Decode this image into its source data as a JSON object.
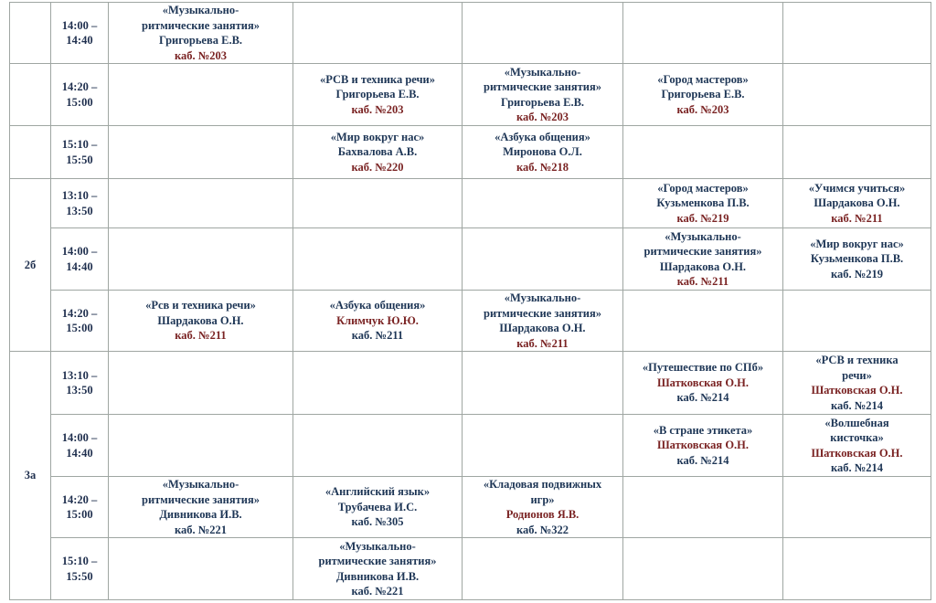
{
  "groups": {
    "g2b": "2б",
    "g3a": "3а"
  },
  "rows": {
    "r1": {
      "t1": "14:00 –",
      "t2": "14:40",
      "c1": {
        "l1": "«Музыкально-",
        "l2": "ритмические занятия»",
        "l3": "Григорьева Е.В.",
        "l4": "каб. №203"
      }
    },
    "r2": {
      "t1": "14:20 –",
      "t2": "15:00",
      "c2": {
        "l1": "«РСВ и техника речи»",
        "l2": "Григорьева Е.В.",
        "l3": "каб. №203"
      },
      "c3": {
        "l1": "«Музыкально-",
        "l2": "ритмические занятия»",
        "l3": "Григорьева Е.В.",
        "l4": "каб. №203"
      },
      "c4": {
        "l1": "«Город мастеров»",
        "l2": "Григорьева Е.В.",
        "l3": "каб. №203"
      }
    },
    "r3": {
      "t1": "15:10 –",
      "t2": "15:50",
      "c2": {
        "l1": "«Мир вокруг нас»",
        "l2": "Бахвалова А.В.",
        "l3": "каб. №220"
      },
      "c3": {
        "l1": "«Азбука общения»",
        "l2": "Миронова О.Л.",
        "l3": "каб. №218"
      }
    },
    "r4": {
      "t1": "13:10 –",
      "t2": "13:50",
      "c4": {
        "l1": "«Город мастеров»",
        "l2": "Кузьменкова П.В.",
        "l3": "каб. №219"
      },
      "c5": {
        "l1": "«Учимся учиться»",
        "l2": "Шардакова О.Н.",
        "l3": "каб. №211"
      }
    },
    "r5": {
      "t1": "14:00 –",
      "t2": "14:40",
      "c4": {
        "l1": "«Музыкально-",
        "l2": "ритмические занятия»",
        "l3": "Шардакова О.Н.",
        "l4": "каб. №211"
      },
      "c5": {
        "l1": "«Мир вокруг нас»",
        "l2": "Кузьменкова П.В.",
        "l3": "каб. №219"
      }
    },
    "r6": {
      "t1": "14:20 –",
      "t2": "15:00",
      "c1": {
        "l1": "«Рсв и техника речи»",
        "l2": "Шардакова О.Н.",
        "l3": "каб. №211"
      },
      "c2": {
        "l1": "«Азбука общения»",
        "l2": "Климчук Ю.Ю.",
        "l3": "каб. №211"
      },
      "c3": {
        "l1": "«Музыкально-",
        "l2": "ритмические занятия»",
        "l3": "Шардакова О.Н.",
        "l4": "каб. №211"
      }
    },
    "r7": {
      "t1": "13:10 –",
      "t2": "13:50",
      "c4": {
        "l1": "«Путешествие по СПб»",
        "l2": "Шатковская О.Н.",
        "l3": "каб. №214"
      },
      "c5": {
        "l1": "«РСВ и техника",
        "l2": "речи»",
        "l3": "Шатковская О.Н.",
        "l4": "каб. №214"
      }
    },
    "r8": {
      "t1": "14:00 –",
      "t2": "14:40",
      "c4": {
        "l1": "«В стране этикета»",
        "l2": "Шатковская О.Н.",
        "l3": "каб. №214"
      },
      "c5": {
        "l1": "«Волшебная",
        "l2": "кисточка»",
        "l3": "Шатковская О.Н.",
        "l4": "каб. №214"
      }
    },
    "r9": {
      "t1": "14:20 –",
      "t2": "15:00",
      "c1": {
        "l1": "«Музыкально-",
        "l2": "ритмические занятия»",
        "l3": "Дивникова И.В.",
        "l4": "каб. №221"
      },
      "c2": {
        "l1": "«Английский язык»",
        "l2": "Трубачева И.С.",
        "l3": "каб. №305"
      },
      "c3": {
        "l1": "«Кладовая подвижных",
        "l2": "игр»",
        "l3": "Родионов Я.В.",
        "l4": "каб. №322"
      }
    },
    "r10": {
      "t1": "15:10 –",
      "t2": "15:50",
      "c2": {
        "l1": "«Музыкально-",
        "l2": "ритмические занятия»",
        "l3": "Дивникова И.В.",
        "l4": "каб. №221"
      }
    }
  }
}
